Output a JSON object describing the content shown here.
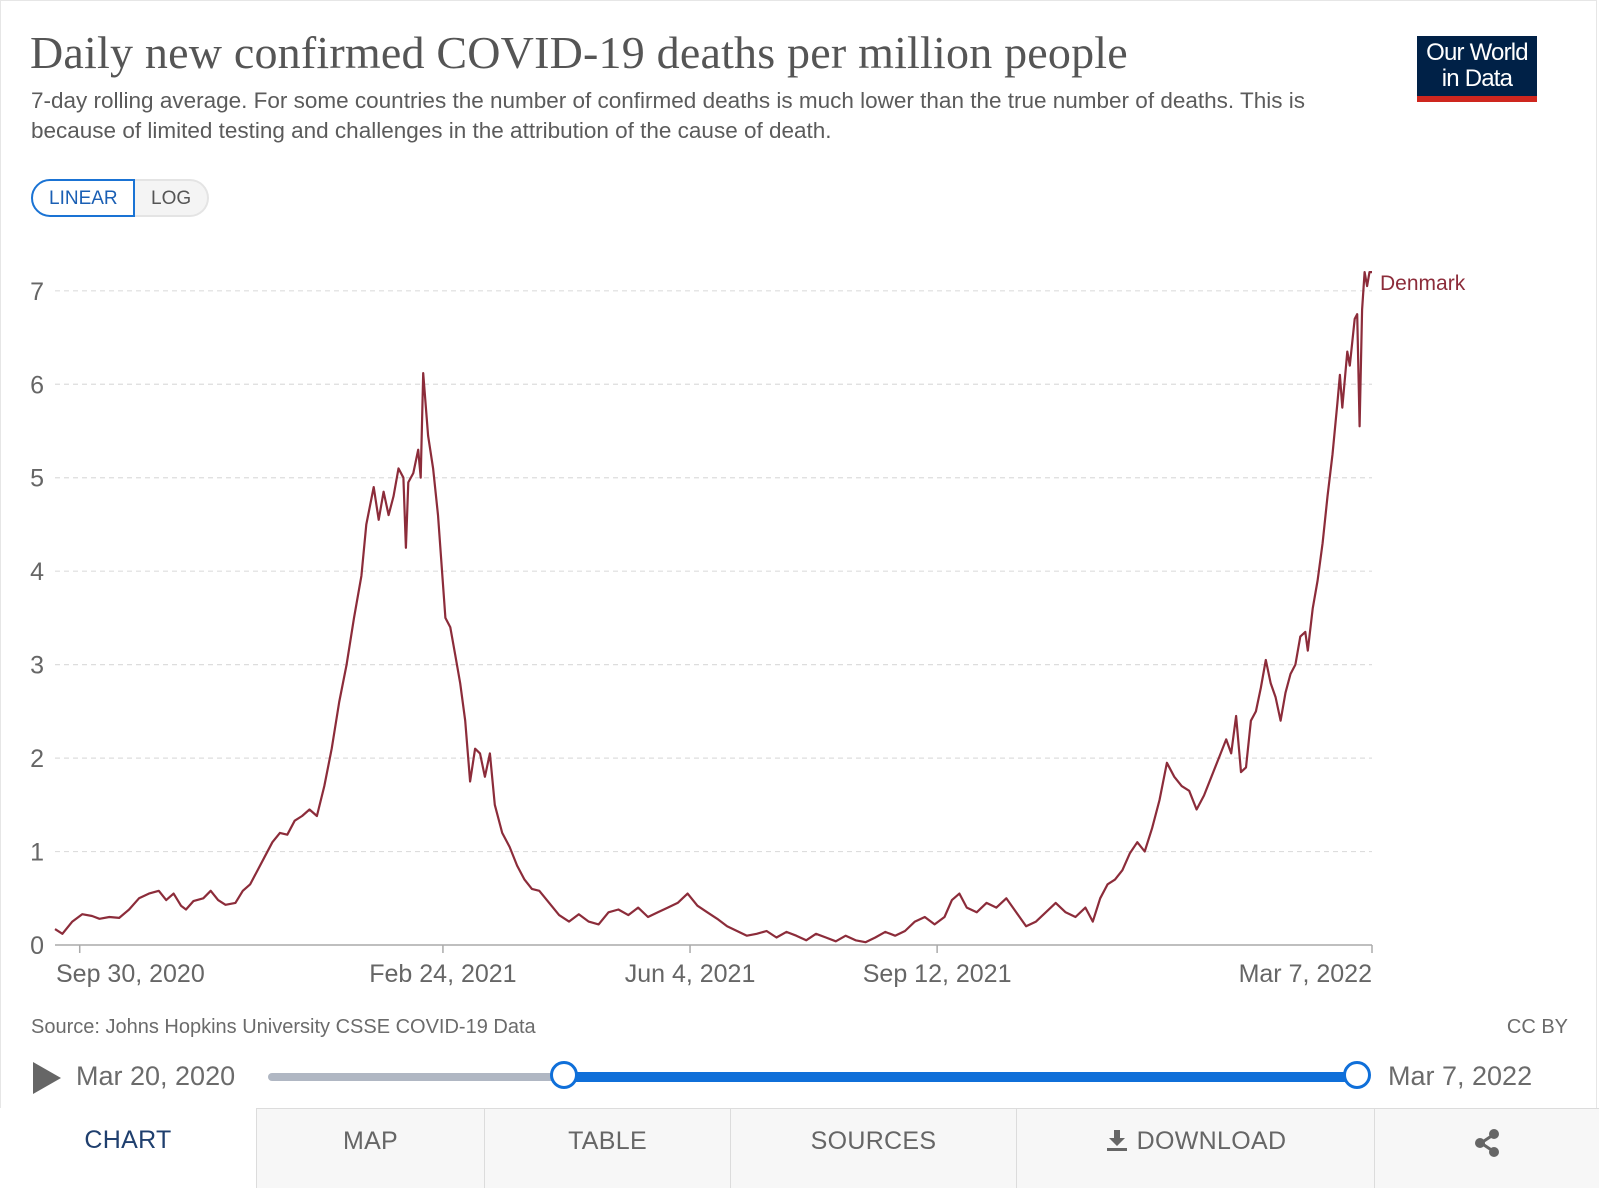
{
  "header": {
    "title": "Daily new confirmed COVID-19 deaths per million people",
    "subtitle": "7-day rolling average. For some countries the number of confirmed deaths is much lower than the true number of deaths. This is because of limited testing and challenges in the attribution of the cause of death.",
    "logo_line1": "Our World",
    "logo_line2": "in Data"
  },
  "scale": {
    "linear_label": "LINEAR",
    "log_label": "LOG",
    "selected": "LINEAR"
  },
  "colors": {
    "series": "#8c2c3a",
    "accent": "#0f6fd9",
    "logo_bg": "#002147",
    "logo_stripe": "#ce261e"
  },
  "chart_data": {
    "type": "line",
    "title": "Daily new confirmed COVID-19 deaths per million people",
    "ylim": [
      0,
      7.2
    ],
    "yticks": [
      0,
      1,
      2,
      3,
      4,
      5,
      6,
      7
    ],
    "xlim": [
      "2020-09-20",
      "2022-03-07"
    ],
    "xticks": [
      {
        "date": "2020-09-30",
        "label": "Sep 30, 2020"
      },
      {
        "date": "2021-02-24",
        "label": "Feb 24, 2021"
      },
      {
        "date": "2021-06-04",
        "label": "Jun 4, 2021"
      },
      {
        "date": "2021-09-12",
        "label": "Sep 12, 2021"
      },
      {
        "date": "2022-03-07",
        "label": "Mar 7, 2022"
      }
    ],
    "grid": true,
    "series": [
      {
        "name": "Denmark",
        "color": "#8c2c3a",
        "points": [
          [
            "2020-09-20",
            0.17
          ],
          [
            "2020-09-23",
            0.12
          ],
          [
            "2020-09-27",
            0.25
          ],
          [
            "2020-10-01",
            0.33
          ],
          [
            "2020-10-05",
            0.31
          ],
          [
            "2020-10-08",
            0.28
          ],
          [
            "2020-10-12",
            0.3
          ],
          [
            "2020-10-16",
            0.29
          ],
          [
            "2020-10-20",
            0.38
          ],
          [
            "2020-10-24",
            0.5
          ],
          [
            "2020-10-28",
            0.55
          ],
          [
            "2020-11-01",
            0.58
          ],
          [
            "2020-11-04",
            0.48
          ],
          [
            "2020-11-07",
            0.55
          ],
          [
            "2020-11-10",
            0.42
          ],
          [
            "2020-11-12",
            0.38
          ],
          [
            "2020-11-15",
            0.47
          ],
          [
            "2020-11-19",
            0.5
          ],
          [
            "2020-11-22",
            0.58
          ],
          [
            "2020-11-25",
            0.48
          ],
          [
            "2020-11-28",
            0.43
          ],
          [
            "2020-12-02",
            0.45
          ],
          [
            "2020-12-05",
            0.58
          ],
          [
            "2020-12-08",
            0.65
          ],
          [
            "2020-12-11",
            0.8
          ],
          [
            "2020-12-14",
            0.95
          ],
          [
            "2020-12-17",
            1.1
          ],
          [
            "2020-12-20",
            1.2
          ],
          [
            "2020-12-23",
            1.18
          ],
          [
            "2020-12-26",
            1.33
          ],
          [
            "2020-12-29",
            1.38
          ],
          [
            "2021-01-01",
            1.45
          ],
          [
            "2021-01-04",
            1.38
          ],
          [
            "2021-01-07",
            1.7
          ],
          [
            "2021-01-10",
            2.1
          ],
          [
            "2021-01-13",
            2.6
          ],
          [
            "2021-01-16",
            3.0
          ],
          [
            "2021-01-19",
            3.5
          ],
          [
            "2021-01-22",
            3.95
          ],
          [
            "2021-01-24",
            4.5
          ],
          [
            "2021-01-27",
            4.9
          ],
          [
            "2021-01-29",
            4.55
          ],
          [
            "2021-01-31",
            4.85
          ],
          [
            "2021-02-02",
            4.6
          ],
          [
            "2021-02-04",
            4.8
          ],
          [
            "2021-02-06",
            5.1
          ],
          [
            "2021-02-08",
            5.0
          ],
          [
            "2021-02-09",
            4.25
          ],
          [
            "2021-02-10",
            4.95
          ],
          [
            "2021-02-12",
            5.05
          ],
          [
            "2021-02-14",
            5.3
          ],
          [
            "2021-02-15",
            5.0
          ],
          [
            "2021-02-16",
            6.12
          ],
          [
            "2021-02-18",
            5.45
          ],
          [
            "2021-02-20",
            5.1
          ],
          [
            "2021-02-22",
            4.6
          ],
          [
            "2021-02-25",
            3.5
          ],
          [
            "2021-02-27",
            3.4
          ],
          [
            "2021-03-01",
            3.1
          ],
          [
            "2021-03-03",
            2.8
          ],
          [
            "2021-03-05",
            2.4
          ],
          [
            "2021-03-07",
            1.75
          ],
          [
            "2021-03-09",
            2.1
          ],
          [
            "2021-03-11",
            2.05
          ],
          [
            "2021-03-13",
            1.8
          ],
          [
            "2021-03-15",
            2.05
          ],
          [
            "2021-03-17",
            1.5
          ],
          [
            "2021-03-20",
            1.2
          ],
          [
            "2021-03-23",
            1.05
          ],
          [
            "2021-03-26",
            0.85
          ],
          [
            "2021-03-29",
            0.7
          ],
          [
            "2021-04-01",
            0.6
          ],
          [
            "2021-04-04",
            0.58
          ],
          [
            "2021-04-08",
            0.45
          ],
          [
            "2021-04-12",
            0.32
          ],
          [
            "2021-04-16",
            0.25
          ],
          [
            "2021-04-20",
            0.33
          ],
          [
            "2021-04-24",
            0.25
          ],
          [
            "2021-04-28",
            0.22
          ],
          [
            "2021-05-02",
            0.35
          ],
          [
            "2021-05-06",
            0.38
          ],
          [
            "2021-05-10",
            0.32
          ],
          [
            "2021-05-14",
            0.4
          ],
          [
            "2021-05-18",
            0.3
          ],
          [
            "2021-05-22",
            0.35
          ],
          [
            "2021-05-26",
            0.4
          ],
          [
            "2021-05-30",
            0.45
          ],
          [
            "2021-06-03",
            0.55
          ],
          [
            "2021-06-07",
            0.42
          ],
          [
            "2021-06-11",
            0.35
          ],
          [
            "2021-06-15",
            0.28
          ],
          [
            "2021-06-19",
            0.2
          ],
          [
            "2021-06-23",
            0.15
          ],
          [
            "2021-06-27",
            0.1
          ],
          [
            "2021-07-01",
            0.12
          ],
          [
            "2021-07-05",
            0.15
          ],
          [
            "2021-07-09",
            0.08
          ],
          [
            "2021-07-13",
            0.14
          ],
          [
            "2021-07-17",
            0.1
          ],
          [
            "2021-07-21",
            0.05
          ],
          [
            "2021-07-25",
            0.12
          ],
          [
            "2021-07-29",
            0.08
          ],
          [
            "2021-08-02",
            0.04
          ],
          [
            "2021-08-06",
            0.1
          ],
          [
            "2021-08-10",
            0.05
          ],
          [
            "2021-08-14",
            0.03
          ],
          [
            "2021-08-18",
            0.08
          ],
          [
            "2021-08-22",
            0.14
          ],
          [
            "2021-08-26",
            0.1
          ],
          [
            "2021-08-30",
            0.15
          ],
          [
            "2021-09-03",
            0.25
          ],
          [
            "2021-09-07",
            0.3
          ],
          [
            "2021-09-11",
            0.22
          ],
          [
            "2021-09-15",
            0.3
          ],
          [
            "2021-09-18",
            0.48
          ],
          [
            "2021-09-21",
            0.55
          ],
          [
            "2021-09-24",
            0.4
          ],
          [
            "2021-09-28",
            0.35
          ],
          [
            "2021-10-02",
            0.45
          ],
          [
            "2021-10-06",
            0.4
          ],
          [
            "2021-10-10",
            0.5
          ],
          [
            "2021-10-14",
            0.35
          ],
          [
            "2021-10-18",
            0.2
          ],
          [
            "2021-10-22",
            0.25
          ],
          [
            "2021-10-26",
            0.35
          ],
          [
            "2021-10-30",
            0.45
          ],
          [
            "2021-11-03",
            0.35
          ],
          [
            "2021-11-07",
            0.3
          ],
          [
            "2021-11-11",
            0.4
          ],
          [
            "2021-11-14",
            0.25
          ],
          [
            "2021-11-17",
            0.5
          ],
          [
            "2021-11-20",
            0.65
          ],
          [
            "2021-11-23",
            0.7
          ],
          [
            "2021-11-26",
            0.8
          ],
          [
            "2021-11-29",
            0.98
          ],
          [
            "2021-12-02",
            1.1
          ],
          [
            "2021-12-05",
            1.0
          ],
          [
            "2021-12-08",
            1.25
          ],
          [
            "2021-12-11",
            1.55
          ],
          [
            "2021-12-14",
            1.95
          ],
          [
            "2021-12-17",
            1.8
          ],
          [
            "2021-12-20",
            1.7
          ],
          [
            "2021-12-23",
            1.65
          ],
          [
            "2021-12-26",
            1.45
          ],
          [
            "2021-12-29",
            1.6
          ],
          [
            "2022-01-01",
            1.8
          ],
          [
            "2022-01-04",
            2.0
          ],
          [
            "2022-01-07",
            2.2
          ],
          [
            "2022-01-09",
            2.05
          ],
          [
            "2022-01-11",
            2.45
          ],
          [
            "2022-01-13",
            1.85
          ],
          [
            "2022-01-15",
            1.9
          ],
          [
            "2022-01-17",
            2.4
          ],
          [
            "2022-01-19",
            2.5
          ],
          [
            "2022-01-21",
            2.75
          ],
          [
            "2022-01-23",
            3.05
          ],
          [
            "2022-01-25",
            2.8
          ],
          [
            "2022-01-27",
            2.65
          ],
          [
            "2022-01-29",
            2.4
          ],
          [
            "2022-01-31",
            2.7
          ],
          [
            "2022-02-02",
            2.9
          ],
          [
            "2022-02-04",
            3.0
          ],
          [
            "2022-02-06",
            3.3
          ],
          [
            "2022-02-08",
            3.35
          ],
          [
            "2022-02-09",
            3.15
          ],
          [
            "2022-02-11",
            3.6
          ],
          [
            "2022-02-13",
            3.9
          ],
          [
            "2022-02-15",
            4.3
          ],
          [
            "2022-02-17",
            4.8
          ],
          [
            "2022-02-19",
            5.25
          ],
          [
            "2022-02-21",
            5.8
          ],
          [
            "2022-02-22",
            6.1
          ],
          [
            "2022-02-23",
            5.75
          ],
          [
            "2022-02-25",
            6.35
          ],
          [
            "2022-02-26",
            6.2
          ],
          [
            "2022-02-28",
            6.7
          ],
          [
            "2022-03-01",
            6.75
          ],
          [
            "2022-03-02",
            5.55
          ],
          [
            "2022-03-03",
            6.8
          ],
          [
            "2022-03-04",
            7.2
          ],
          [
            "2022-03-05",
            7.05
          ],
          [
            "2022-03-06",
            7.2
          ],
          [
            "2022-03-07",
            7.2
          ]
        ]
      }
    ]
  },
  "footer": {
    "source": "Source: Johns Hopkins University CSSE COVID-19 Data",
    "license": "CC BY"
  },
  "timeline": {
    "start_label": "Mar 20, 2020",
    "end_label": "Mar 7, 2022"
  },
  "tabs": [
    {
      "label": "CHART",
      "active": true
    },
    {
      "label": "MAP",
      "active": false
    },
    {
      "label": "TABLE",
      "active": false
    },
    {
      "label": "SOURCES",
      "active": false
    },
    {
      "label": "DOWNLOAD",
      "active": false
    }
  ]
}
